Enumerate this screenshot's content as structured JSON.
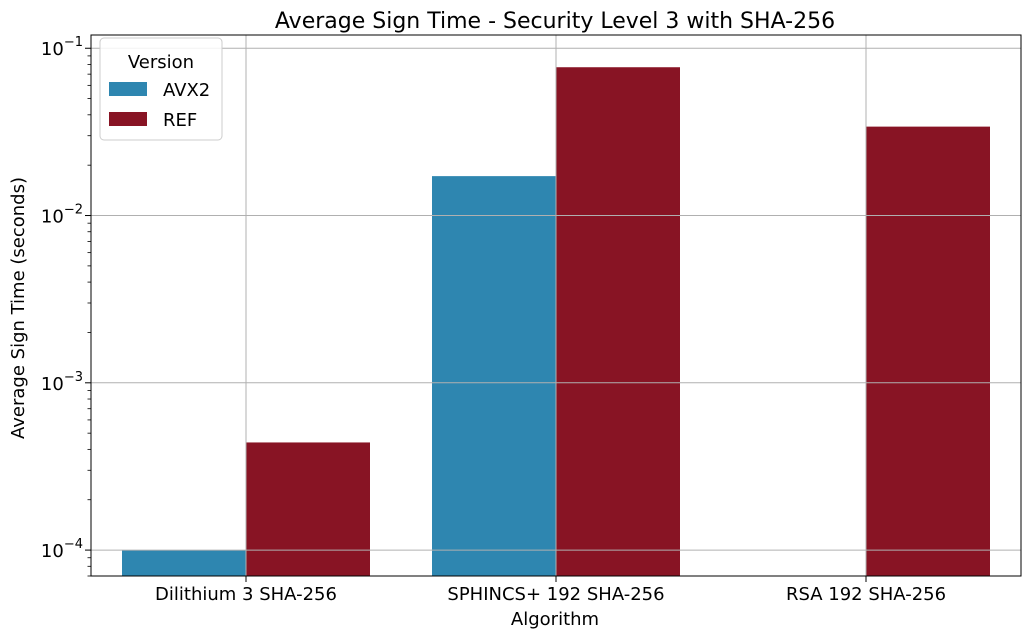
{
  "chart_data": {
    "type": "bar",
    "title": "Average Sign Time - Security Level 3 with SHA-256",
    "xlabel": "Algorithm",
    "ylabel": "Average Sign Time (seconds)",
    "yscale": "log",
    "ylim": [
      7e-05,
      0.12
    ],
    "yticks": [
      {
        "value": 0.0001,
        "base": "10",
        "exp": "−4"
      },
      {
        "value": 0.001,
        "base": "10",
        "exp": "−3"
      },
      {
        "value": 0.01,
        "base": "10",
        "exp": "−2"
      },
      {
        "value": 0.1,
        "base": "10",
        "exp": "−1"
      }
    ],
    "categories": [
      "Dilithium 3 SHA-256",
      "SPHINCS+ 192 SHA-256",
      "RSA 192 SHA-256"
    ],
    "series": [
      {
        "name": "AVX2",
        "color": "#2e86b0",
        "values": [
          0.0001,
          0.0172,
          null
        ]
      },
      {
        "name": "REF",
        "color": "#881424",
        "values": [
          0.00044,
          0.077,
          0.034
        ]
      }
    ],
    "legend": {
      "title": "Version",
      "position": "top-left"
    },
    "grid": true
  }
}
